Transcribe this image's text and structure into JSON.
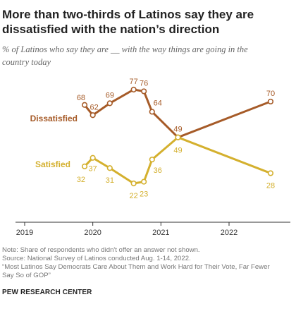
{
  "title_line1": "More than two-thirds of Latinos say they are",
  "title_line2": "dissatisfied with the nation’s direction",
  "subtitle_line1": "% of Latinos who say they are __ with the way things are going in the",
  "subtitle_line2": "country today",
  "note": "Note: Share of respondents who didn't offer an answer not shown.",
  "source": "Source: National Survey of Latinos conducted Aug. 1-14, 2022.",
  "report_line1": "“Most Latinos Say Democrats Care About Them and Work Hard for Their Vote, Far Fewer",
  "report_line2": "Say So of GOP”",
  "organization": "PEW RESEARCH CENTER",
  "colors": {
    "dissatisfied": "#a65b28",
    "satisfied": "#d4b02e",
    "axis": "#333333",
    "tick_text": "#333333"
  },
  "chart_data": {
    "type": "line",
    "title": "More than two-thirds of Latinos say they are dissatisfied with the nation’s direction",
    "xlabel": "",
    "ylabel": "",
    "x_ticks": [
      2019,
      2020,
      2021,
      2022
    ],
    "xlim": [
      2019,
      2022.8
    ],
    "ylim": [
      20,
      75
    ],
    "grid": false,
    "legend": "inline labels at left of lines",
    "series": [
      {
        "name": "Dissatisfied",
        "color": "#a65b28",
        "points": [
          {
            "x": 2019.88,
            "y": 68
          },
          {
            "x": 2020.0,
            "y": 62
          },
          {
            "x": 2020.25,
            "y": 69
          },
          {
            "x": 2020.6,
            "y": 77
          },
          {
            "x": 2020.75,
            "y": 76
          },
          {
            "x": 2020.87,
            "y": 64
          },
          {
            "x": 2021.25,
            "y": 49
          },
          {
            "x": 2022.61,
            "y": 70
          }
        ]
      },
      {
        "name": "Satisfied",
        "color": "#d4b02e",
        "points": [
          {
            "x": 2019.88,
            "y": 32
          },
          {
            "x": 2020.0,
            "y": 37
          },
          {
            "x": 2020.25,
            "y": 31
          },
          {
            "x": 2020.6,
            "y": 22
          },
          {
            "x": 2020.75,
            "y": 23
          },
          {
            "x": 2020.87,
            "y": 36
          },
          {
            "x": 2021.25,
            "y": 49
          },
          {
            "x": 2022.61,
            "y": 28
          }
        ]
      }
    ]
  }
}
